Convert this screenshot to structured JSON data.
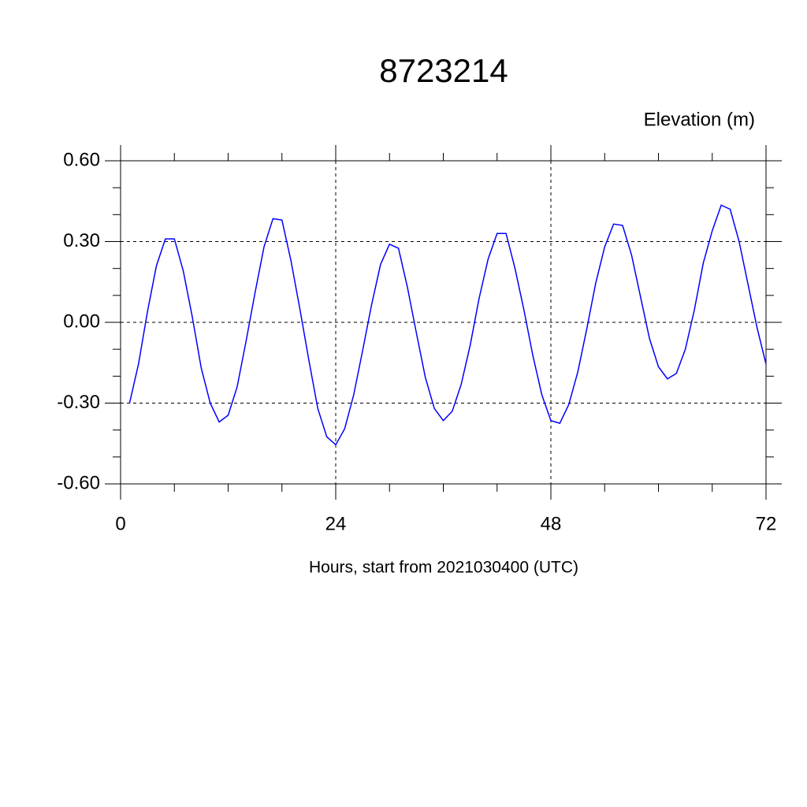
{
  "chart_data": {
    "type": "line",
    "title": "8723214",
    "subtitle": "Elevation (m)",
    "x_label": "Hours, start from 2021030400 (UTC)",
    "x": [
      1,
      2,
      3,
      4,
      5,
      6,
      7,
      8,
      9,
      10,
      11,
      12,
      13,
      14,
      15,
      16,
      17,
      18,
      19,
      20,
      21,
      22,
      23,
      24,
      25,
      26,
      27,
      28,
      29,
      30,
      31,
      32,
      33,
      34,
      35,
      36,
      37,
      38,
      39,
      40,
      41,
      42,
      43,
      44,
      45,
      46,
      47,
      48,
      49,
      50,
      51,
      52,
      53,
      54,
      55,
      56,
      57,
      58,
      59,
      60,
      61,
      62,
      63,
      64,
      65,
      66,
      67,
      68,
      69,
      70,
      71,
      72
    ],
    "series": [
      {
        "name": "Elevation",
        "color": "#0000ff",
        "values": [
          -0.3,
          -0.155,
          0.04,
          0.21,
          0.31,
          0.31,
          0.19,
          0.02,
          -0.17,
          -0.3,
          -0.37,
          -0.345,
          -0.24,
          -0.07,
          0.11,
          0.28,
          0.385,
          0.38,
          0.23,
          0.05,
          -0.14,
          -0.32,
          -0.425,
          -0.455,
          -0.395,
          -0.27,
          -0.105,
          0.065,
          0.215,
          0.29,
          0.275,
          0.13,
          -0.04,
          -0.205,
          -0.32,
          -0.365,
          -0.33,
          -0.23,
          -0.085,
          0.09,
          0.235,
          0.33,
          0.33,
          0.2,
          0.045,
          -0.125,
          -0.27,
          -0.365,
          -0.375,
          -0.305,
          -0.185,
          -0.025,
          0.145,
          0.28,
          0.365,
          0.36,
          0.25,
          0.095,
          -0.06,
          -0.165,
          -0.21,
          -0.19,
          -0.1,
          0.045,
          0.22,
          0.34,
          0.435,
          0.42,
          0.3,
          0.14,
          -0.02,
          -0.155
        ]
      }
    ],
    "xlim": [
      0,
      72
    ],
    "xticks": [
      0,
      24,
      48,
      72
    ],
    "xminorticks": [
      6,
      12,
      18,
      30,
      36,
      42,
      54,
      60,
      66
    ],
    "ylim": [
      -0.6,
      0.6
    ],
    "yticks": [
      {
        "value": -0.6,
        "label": "-0.60"
      },
      {
        "value": -0.3,
        "label": "-0.30"
      },
      {
        "value": 0,
        "label": "0.00"
      },
      {
        "value": 0.3,
        "label": "0.30"
      },
      {
        "value": 0.6,
        "label": "0.60"
      }
    ],
    "yminorticks": [
      -0.5,
      -0.4,
      -0.2,
      -0.1,
      0.1,
      0.2,
      0.4,
      0.5
    ],
    "grid": true
  }
}
